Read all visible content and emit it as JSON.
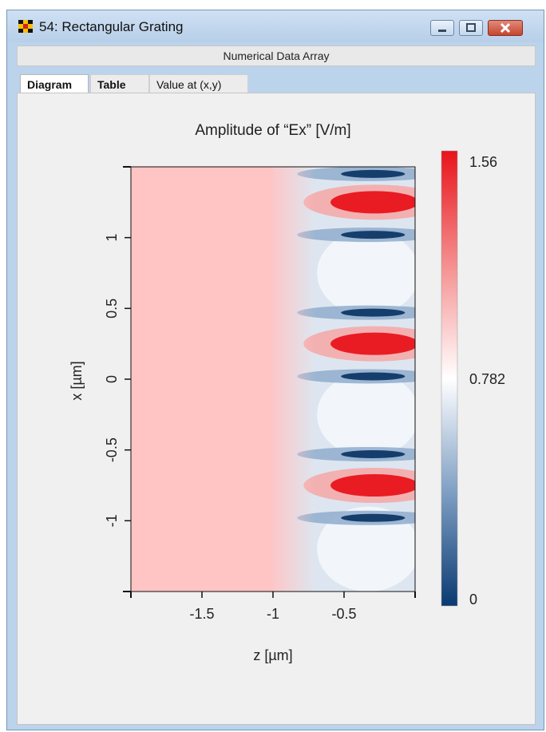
{
  "window": {
    "title": "54: Rectangular Grating",
    "subheader": "Numerical Data Array"
  },
  "tabs": [
    {
      "label": "Diagram",
      "active": true
    },
    {
      "label": "Table",
      "active": false
    },
    {
      "label": "Value at (x,y)",
      "active": false
    }
  ],
  "chart_data": {
    "type": "heatmap",
    "title": "Amplitude of “Ex”  [V/m]",
    "xlabel": "z [µm]",
    "ylabel": "x [µm]",
    "xlim": [
      -2.0,
      0.0
    ],
    "ylim": [
      -1.5,
      1.5
    ],
    "xticks": [
      -1.5,
      -1,
      -0.5
    ],
    "xtick_labels": [
      "-1.5",
      "-1",
      "-0.5"
    ],
    "yticks": [
      1,
      0.5,
      0,
      -0.5,
      -1
    ],
    "ytick_labels": [
      "1",
      "0.5",
      "0",
      "-0.5",
      "-1"
    ],
    "colorbar": {
      "min": 0,
      "mid": 0.782,
      "max": 1.56,
      "labels": [
        "1.56",
        "0.782",
        "0"
      ],
      "colors": {
        "low": "#0a3a72",
        "mid": "#ffffff",
        "high": "#e8141b"
      }
    },
    "regions": [
      {
        "name": "uniform-region",
        "z": [
          -2.0,
          -1.0
        ],
        "value": 1.02
      },
      {
        "name": "grating-region",
        "z": [
          -1.0,
          0.0
        ],
        "pattern": "periodic",
        "period_x": 1.0
      }
    ],
    "max_bands_x": [
      1.25,
      0.25,
      -0.75
    ],
    "min_bands_x": [
      1.45,
      1.02,
      0.47,
      0.02,
      -0.53,
      -0.98
    ]
  }
}
